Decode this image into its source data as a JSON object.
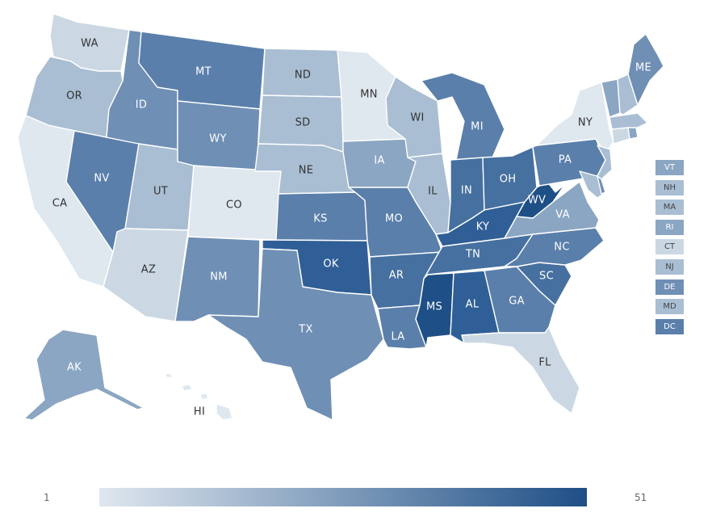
{
  "palette": {
    "c1": "#dfe7ef",
    "c2": "#cbd8e4",
    "c3": "#a9bed3",
    "c4": "#8ba6c3",
    "c5": "#6f8fb5",
    "c6": "#5a7fab",
    "c7": "#4670a0",
    "c8": "#2f5f96",
    "c9": "#1e4f86"
  },
  "states": [
    {
      "code": "WA",
      "shade": "c2"
    },
    {
      "code": "OR",
      "shade": "c3"
    },
    {
      "code": "CA",
      "shade": "c1"
    },
    {
      "code": "NV",
      "shade": "c6"
    },
    {
      "code": "ID",
      "shade": "c5"
    },
    {
      "code": "MT",
      "shade": "c6"
    },
    {
      "code": "WY",
      "shade": "c5"
    },
    {
      "code": "UT",
      "shade": "c3"
    },
    {
      "code": "AZ",
      "shade": "c2"
    },
    {
      "code": "CO",
      "shade": "c1"
    },
    {
      "code": "NM",
      "shade": "c5"
    },
    {
      "code": "ND",
      "shade": "c3"
    },
    {
      "code": "SD",
      "shade": "c3"
    },
    {
      "code": "NE",
      "shade": "c3"
    },
    {
      "code": "KS",
      "shade": "c6"
    },
    {
      "code": "OK",
      "shade": "c8"
    },
    {
      "code": "TX",
      "shade": "c5"
    },
    {
      "code": "MN",
      "shade": "c1"
    },
    {
      "code": "IA",
      "shade": "c4"
    },
    {
      "code": "MO",
      "shade": "c6"
    },
    {
      "code": "AR",
      "shade": "c7"
    },
    {
      "code": "LA",
      "shade": "c6"
    },
    {
      "code": "WI",
      "shade": "c3"
    },
    {
      "code": "IL",
      "shade": "c3"
    },
    {
      "code": "MI",
      "shade": "c6"
    },
    {
      "code": "IN",
      "shade": "c7"
    },
    {
      "code": "OH",
      "shade": "c7"
    },
    {
      "code": "KY",
      "shade": "c8"
    },
    {
      "code": "TN",
      "shade": "c7"
    },
    {
      "code": "MS",
      "shade": "c9"
    },
    {
      "code": "AL",
      "shade": "c8"
    },
    {
      "code": "GA",
      "shade": "c6"
    },
    {
      "code": "FL",
      "shade": "c2"
    },
    {
      "code": "SC",
      "shade": "c7"
    },
    {
      "code": "NC",
      "shade": "c6"
    },
    {
      "code": "VA",
      "shade": "c4"
    },
    {
      "code": "WV",
      "shade": "c9"
    },
    {
      "code": "PA",
      "shade": "c6"
    },
    {
      "code": "NY",
      "shade": "c1"
    },
    {
      "code": "ME",
      "shade": "c5"
    },
    {
      "code": "AK",
      "shade": "c4"
    },
    {
      "code": "HI",
      "shade": "c1"
    }
  ],
  "small_states": [
    {
      "code": "VT",
      "shade": "c4"
    },
    {
      "code": "NH",
      "shade": "c3"
    },
    {
      "code": "MA",
      "shade": "c3"
    },
    {
      "code": "RI",
      "shade": "c4"
    },
    {
      "code": "CT",
      "shade": "c2"
    },
    {
      "code": "NJ",
      "shade": "c3"
    },
    {
      "code": "DE",
      "shade": "c5"
    },
    {
      "code": "MD",
      "shade": "c3"
    },
    {
      "code": "DC",
      "shade": "c6"
    }
  ],
  "legend": {
    "min": "1",
    "max": "51",
    "color_start": "#dfe7ef",
    "color_end": "#1e4f86"
  }
}
